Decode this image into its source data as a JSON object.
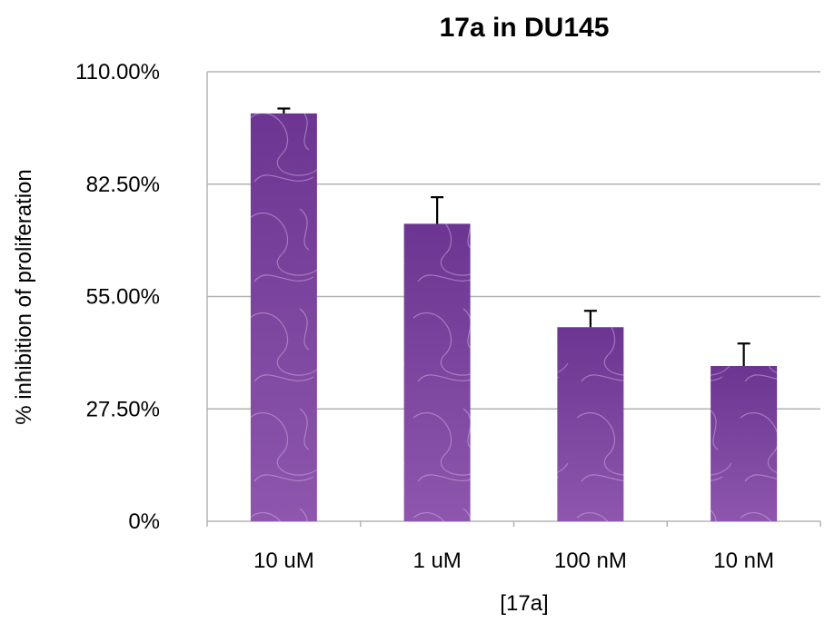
{
  "chart_data": {
    "type": "bar",
    "title": "17a in DU145",
    "xlabel": "[17a]",
    "ylabel": "% inhibition of proliferation",
    "categories": [
      "10 uM",
      "1 uM",
      "100 nM",
      "10 nM"
    ],
    "values": [
      99.8,
      72.8,
      47.5,
      38.0
    ],
    "error_upper": [
      1.2,
      6.5,
      4.0,
      5.5
    ],
    "yticks": [
      0,
      27.5,
      55,
      82.5,
      110
    ],
    "ytick_labels": [
      "0%",
      "27.50%",
      "55.00%",
      "82.50%",
      "110.00%"
    ],
    "ylim": [
      0,
      110
    ],
    "grid": true,
    "legend": "none",
    "colors": {
      "bar_top": "#6b3591",
      "bar_bottom": "#8e56ad",
      "grid": "#b3b3b3",
      "error_bar": "#000000",
      "swirl": "#c9a9dc"
    }
  }
}
